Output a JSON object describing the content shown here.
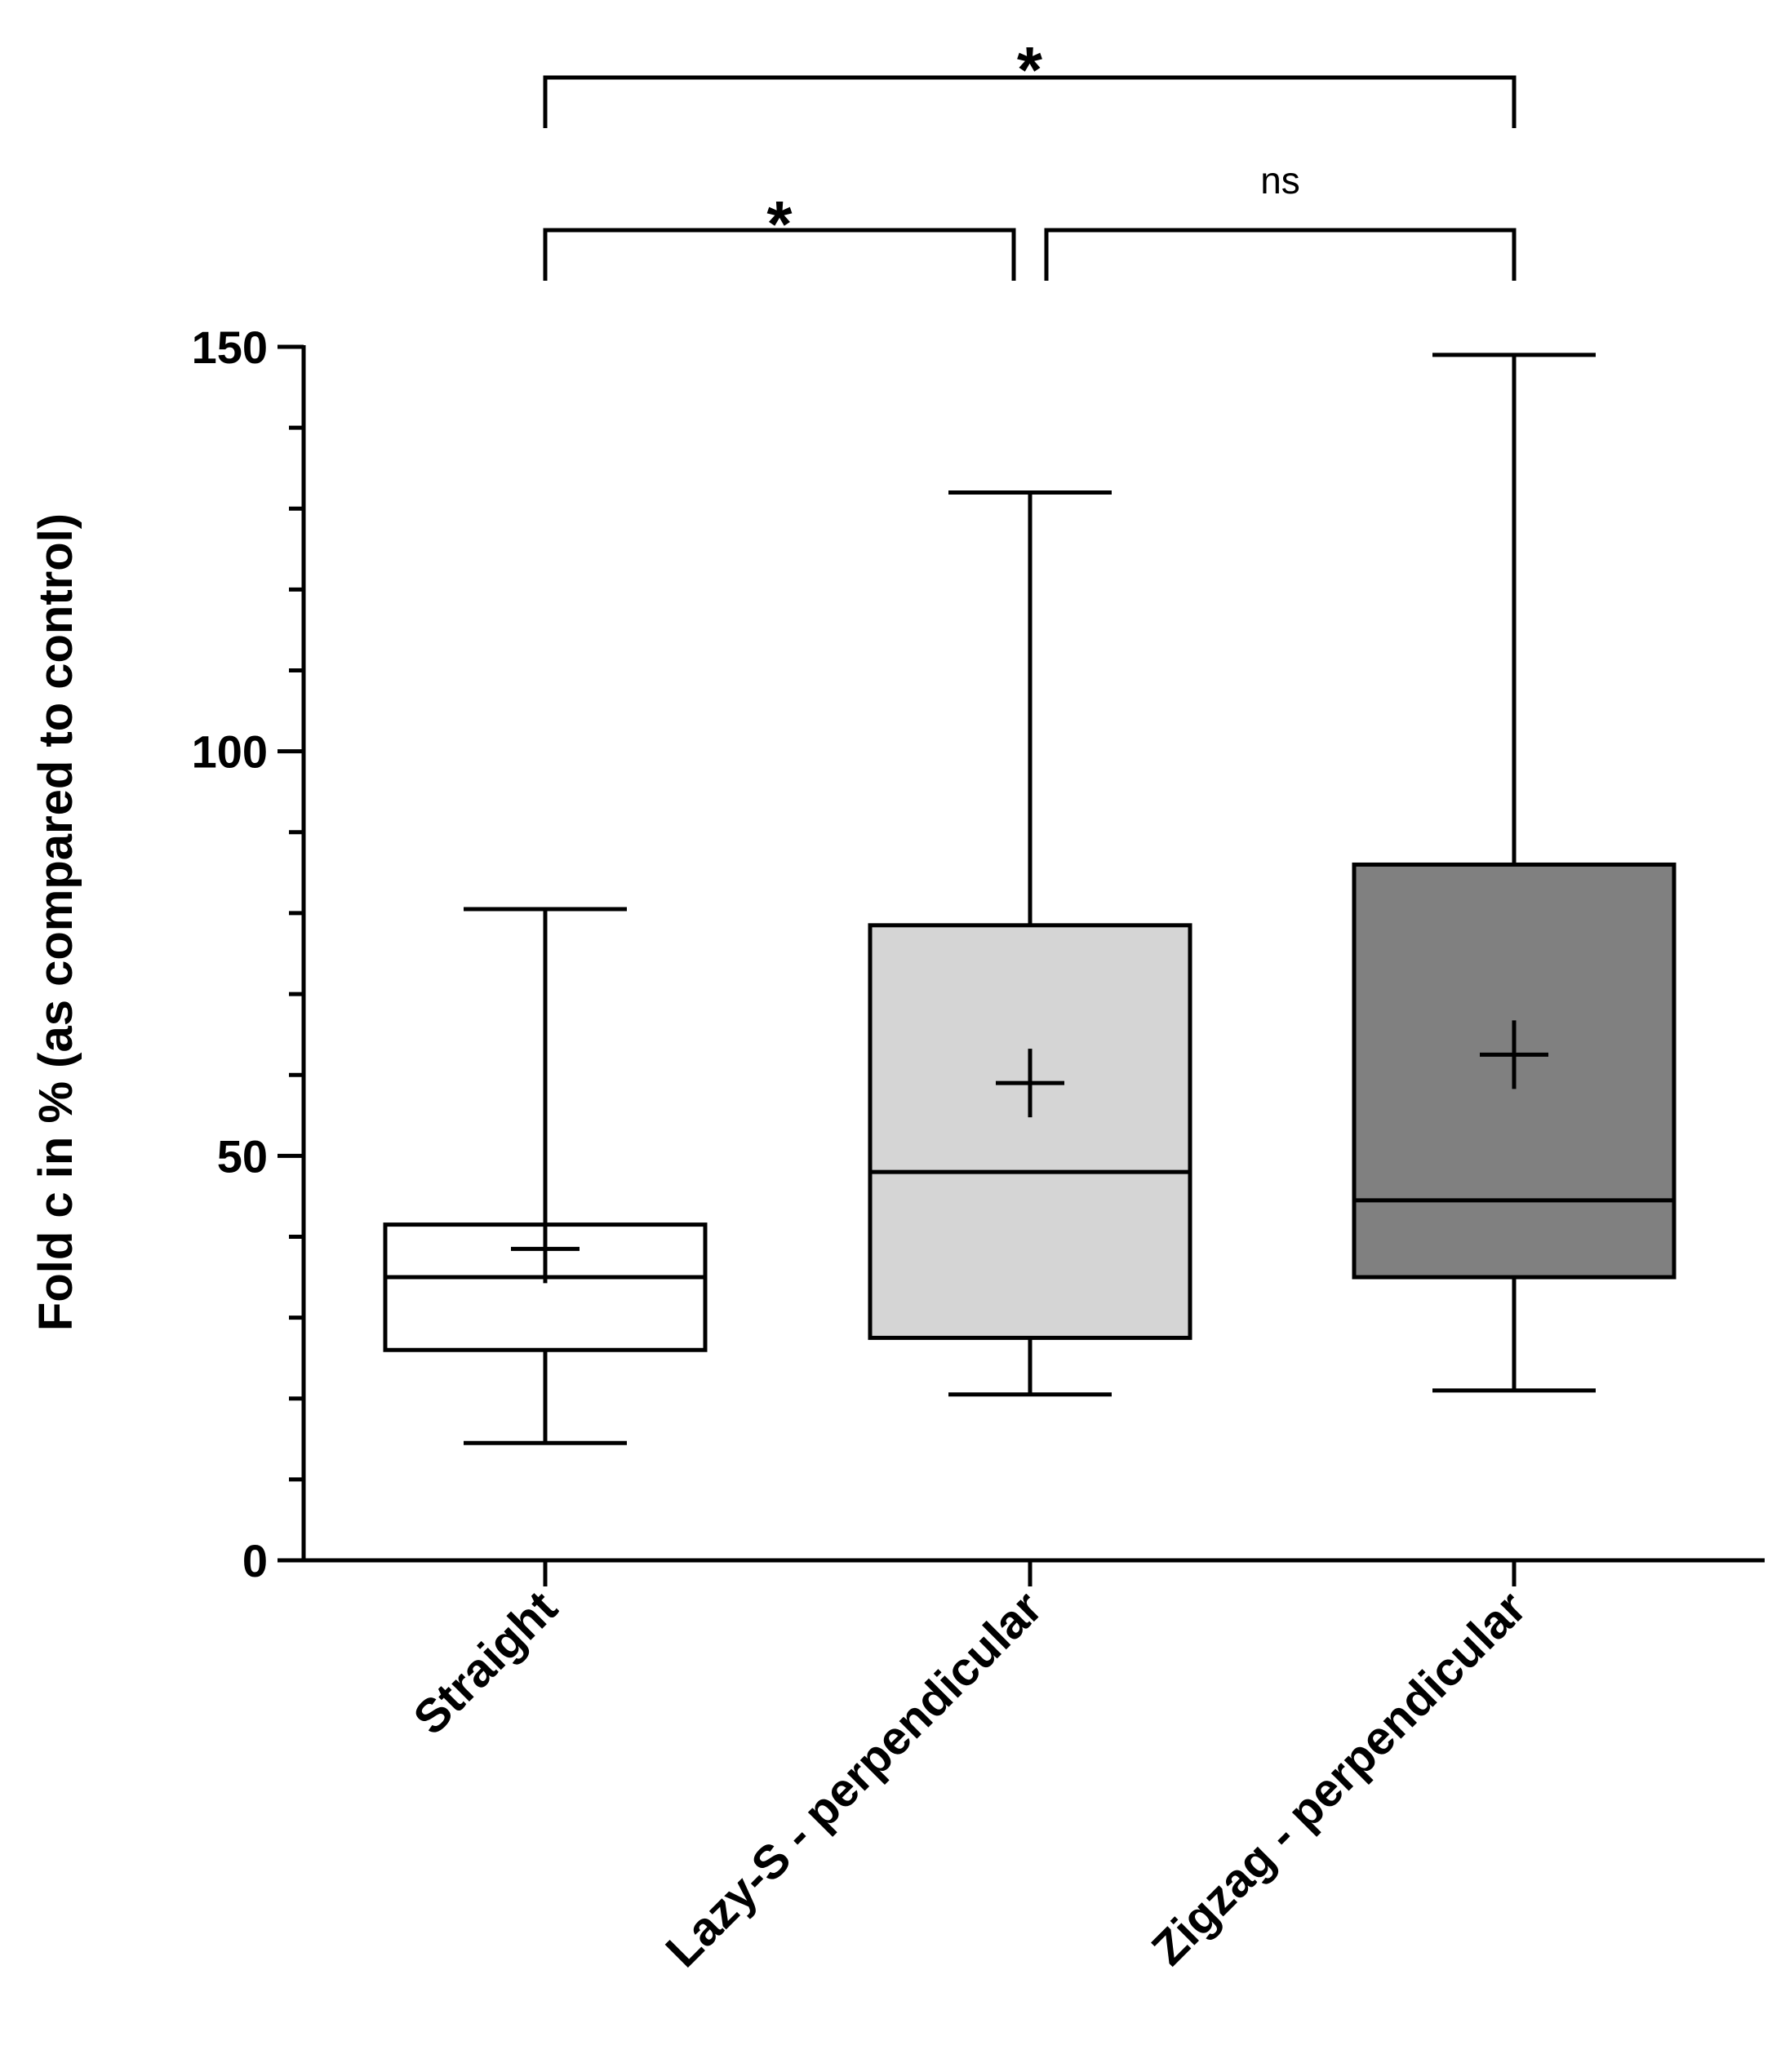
{
  "chart_data": {
    "type": "box",
    "title": "",
    "xlabel": "",
    "ylabel": "Fold c in % (as compared to control)",
    "ylim": [
      0,
      150
    ],
    "yticks": [
      0,
      50,
      100,
      150
    ],
    "yminor_step": 10,
    "categories": [
      "Straight",
      "Lazy-S - perpendicular",
      "Zigzag - perpendicular"
    ],
    "boxes": [
      {
        "name": "Straight",
        "min": 14.5,
        "q1": 26,
        "median": 35,
        "q3": 41.5,
        "max": 80.5,
        "mean": 38.5,
        "fill": "#ffffff"
      },
      {
        "name": "Lazy-S - perpendicular",
        "min": 20.5,
        "q1": 27.5,
        "median": 48,
        "q3": 78.5,
        "max": 132,
        "mean": 59,
        "fill": "#d5d5d5"
      },
      {
        "name": "Zigzag - perpendicular",
        "min": 21,
        "q1": 35,
        "median": 44.5,
        "q3": 86,
        "max": 149,
        "mean": 62.5,
        "fill": "#808080"
      }
    ],
    "significance": [
      {
        "from": 0,
        "to": 2,
        "label": "*",
        "level": 2
      },
      {
        "from": 0,
        "to": 1,
        "label": "*",
        "level": 1
      },
      {
        "from": 1,
        "to": 2,
        "label": "ns",
        "level": 1
      }
    ]
  }
}
